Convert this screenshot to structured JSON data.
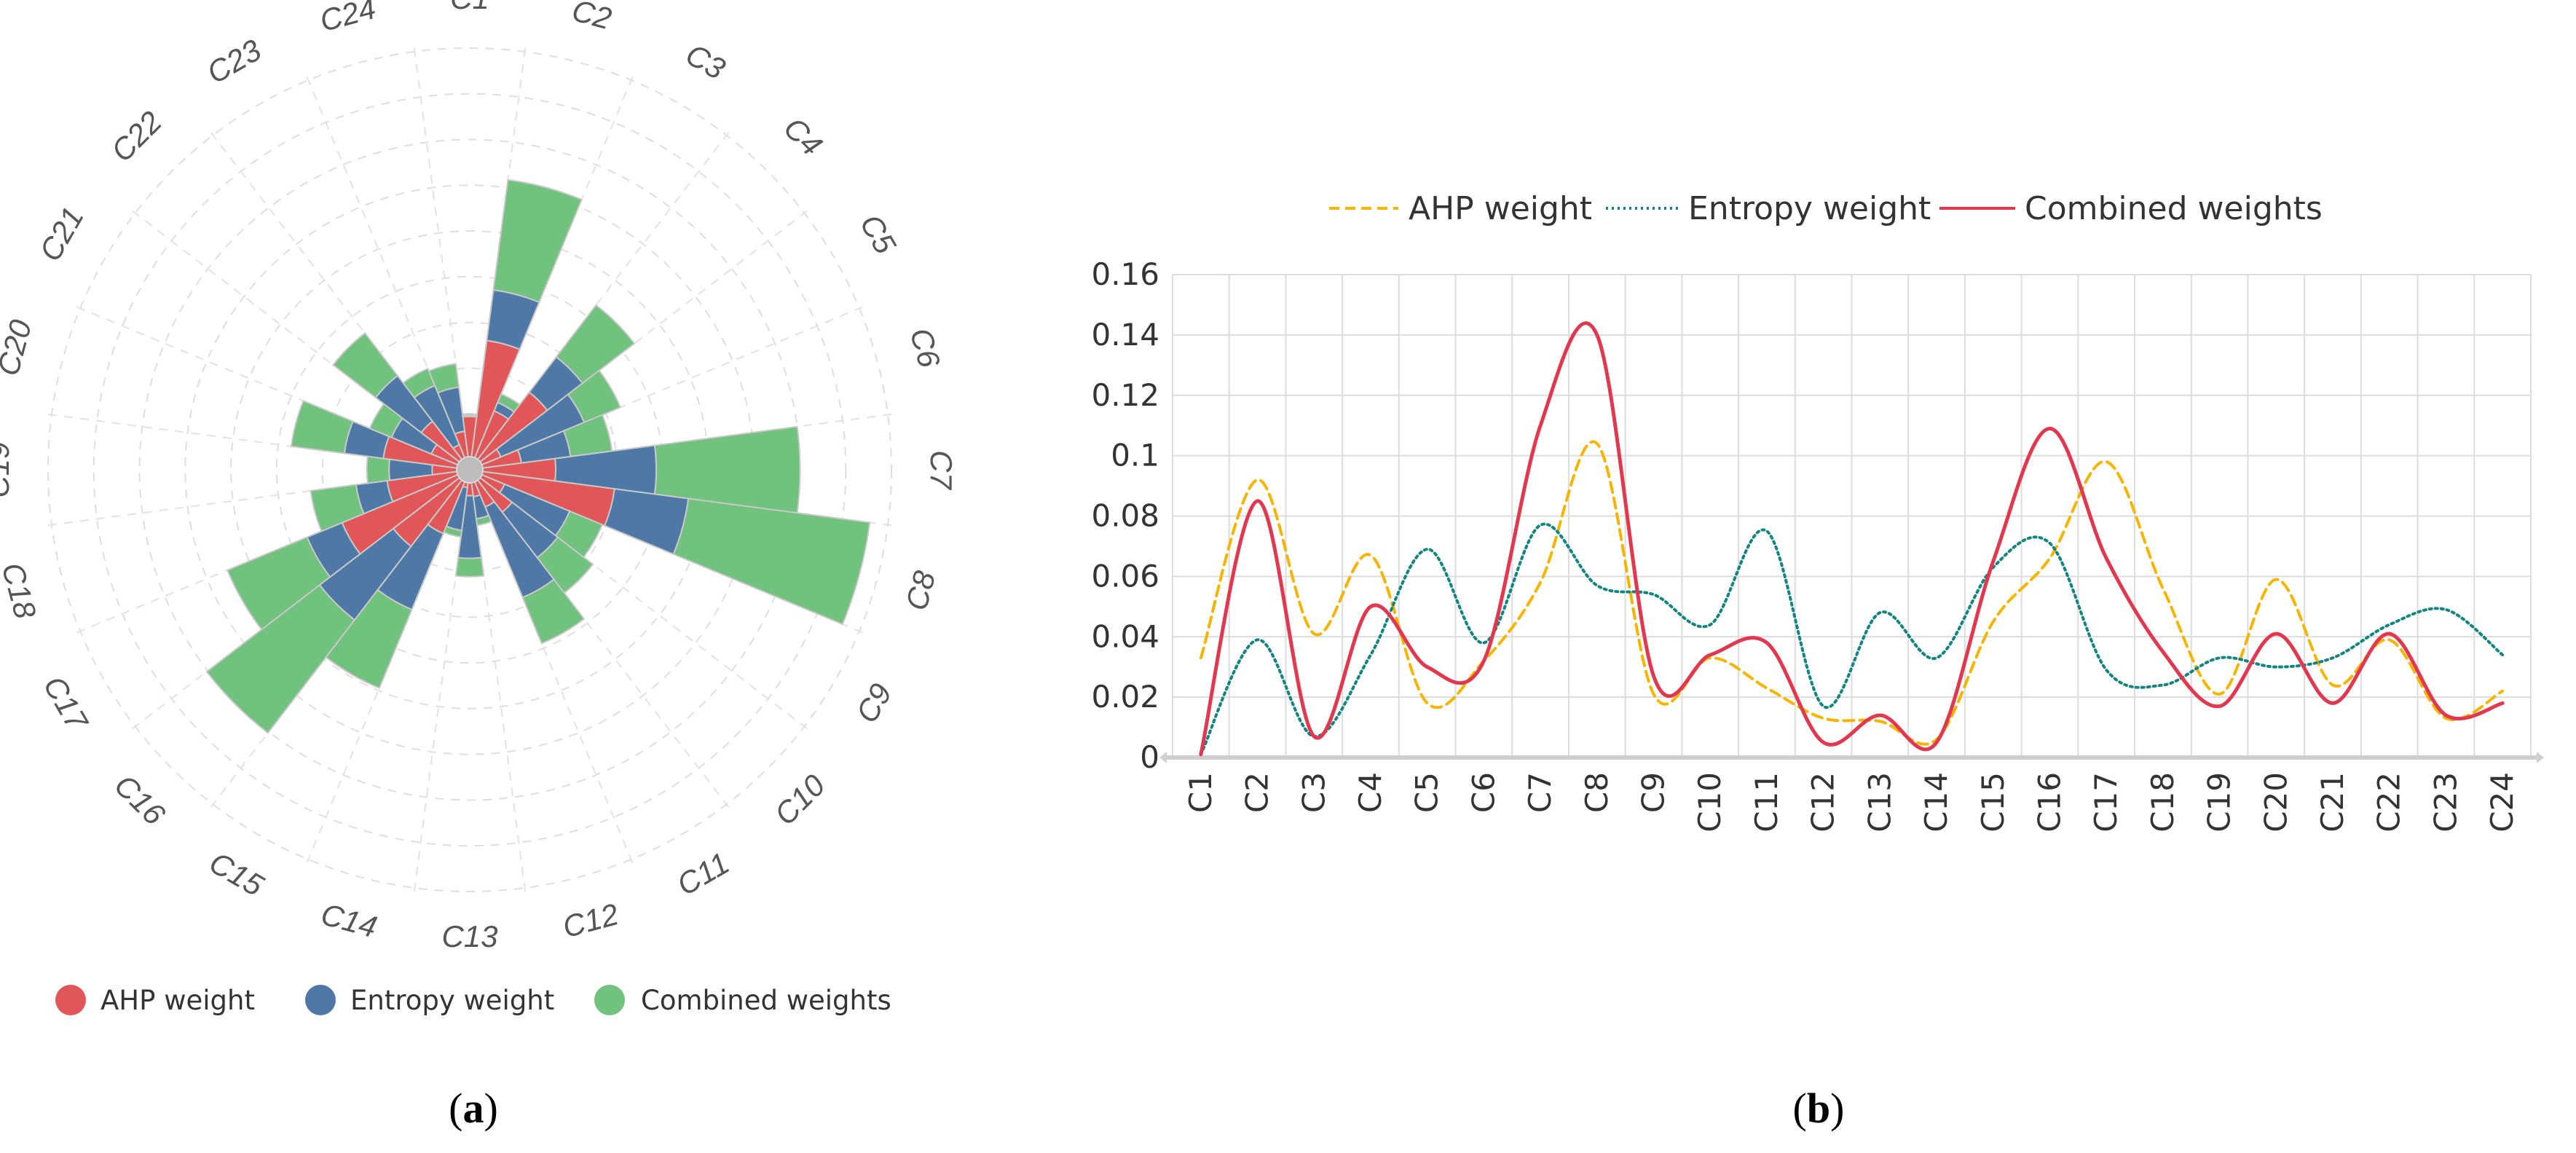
{
  "colors": {
    "ahp": "#e15759",
    "entropy": "#4e79a7",
    "combined": "#71c17f",
    "line_ahp": "#f5b400",
    "line_entropy": "#13847f",
    "line_combined": "#e0394f"
  },
  "panels": {
    "a_open": "(",
    "a_letter": "a",
    "a_close": ")",
    "b_open": "(",
    "b_letter": "b",
    "b_close": ")"
  },
  "chart_data": [
    {
      "type": "bar",
      "subtype": "polar-stacked",
      "categories": [
        "C1",
        "C2",
        "C3",
        "C4",
        "C5",
        "C6",
        "C7",
        "C8",
        "C9",
        "C10",
        "C11",
        "C12",
        "C13",
        "C14",
        "C15",
        "C16",
        "C17",
        "C18",
        "C19",
        "C20",
        "C21",
        "C22",
        "C23",
        "C24"
      ],
      "series": [
        {
          "name": "AHP weight",
          "values": [
            0.033,
            0.092,
            0.041,
            0.067,
            0.018,
            0.032,
            0.058,
            0.104,
            0.021,
            0.033,
            0.023,
            0.013,
            0.012,
            0.006,
            0.045,
            0.066,
            0.098,
            0.056,
            0.021,
            0.059,
            0.024,
            0.039,
            0.013,
            0.022
          ]
        },
        {
          "name": "Entropy weight",
          "values": [
            0.001,
            0.039,
            0.007,
            0.034,
            0.069,
            0.038,
            0.077,
            0.057,
            0.054,
            0.044,
            0.075,
            0.017,
            0.048,
            0.033,
            0.063,
            0.071,
            0.029,
            0.024,
            0.033,
            0.03,
            0.033,
            0.044,
            0.049,
            0.034
          ]
        },
        {
          "name": "Combined weights",
          "values": [
            0.001,
            0.085,
            0.007,
            0.05,
            0.03,
            0.032,
            0.11,
            0.14,
            0.027,
            0.034,
            0.038,
            0.005,
            0.014,
            0.005,
            0.065,
            0.109,
            0.066,
            0.035,
            0.017,
            0.041,
            0.018,
            0.041,
            0.014,
            0.018
          ]
        }
      ],
      "legend_position": "bottom",
      "grid": true
    },
    {
      "type": "line",
      "categories": [
        "C1",
        "C2",
        "C3",
        "C4",
        "C5",
        "C6",
        "C7",
        "C8",
        "C9",
        "C10",
        "C11",
        "C12",
        "C13",
        "C14",
        "C15",
        "C16",
        "C17",
        "C18",
        "C19",
        "C20",
        "C21",
        "C22",
        "C23",
        "C24"
      ],
      "series": [
        {
          "name": "AHP weight",
          "style": "dashed",
          "values": [
            0.033,
            0.092,
            0.041,
            0.067,
            0.018,
            0.032,
            0.058,
            0.104,
            0.021,
            0.033,
            0.023,
            0.013,
            0.012,
            0.006,
            0.045,
            0.066,
            0.098,
            0.056,
            0.021,
            0.059,
            0.024,
            0.039,
            0.013,
            0.022
          ]
        },
        {
          "name": "Entropy weight",
          "style": "dotted",
          "values": [
            0.001,
            0.039,
            0.007,
            0.034,
            0.069,
            0.038,
            0.077,
            0.057,
            0.054,
            0.044,
            0.075,
            0.017,
            0.048,
            0.033,
            0.063,
            0.071,
            0.029,
            0.024,
            0.033,
            0.03,
            0.033,
            0.044,
            0.049,
            0.034
          ]
        },
        {
          "name": "Combined weights",
          "style": "solid",
          "values": [
            0.001,
            0.085,
            0.007,
            0.05,
            0.03,
            0.032,
            0.11,
            0.14,
            0.027,
            0.034,
            0.038,
            0.005,
            0.014,
            0.005,
            0.065,
            0.109,
            0.066,
            0.035,
            0.017,
            0.041,
            0.018,
            0.041,
            0.014,
            0.018
          ]
        }
      ],
      "ylim": [
        0,
        0.16
      ],
      "y_ticks": [
        "0",
        "0.02",
        "0.04",
        "0.06",
        "0.08",
        "0.1",
        "0.12",
        "0.14",
        "0.16"
      ],
      "legend_position": "top",
      "grid": true
    }
  ]
}
